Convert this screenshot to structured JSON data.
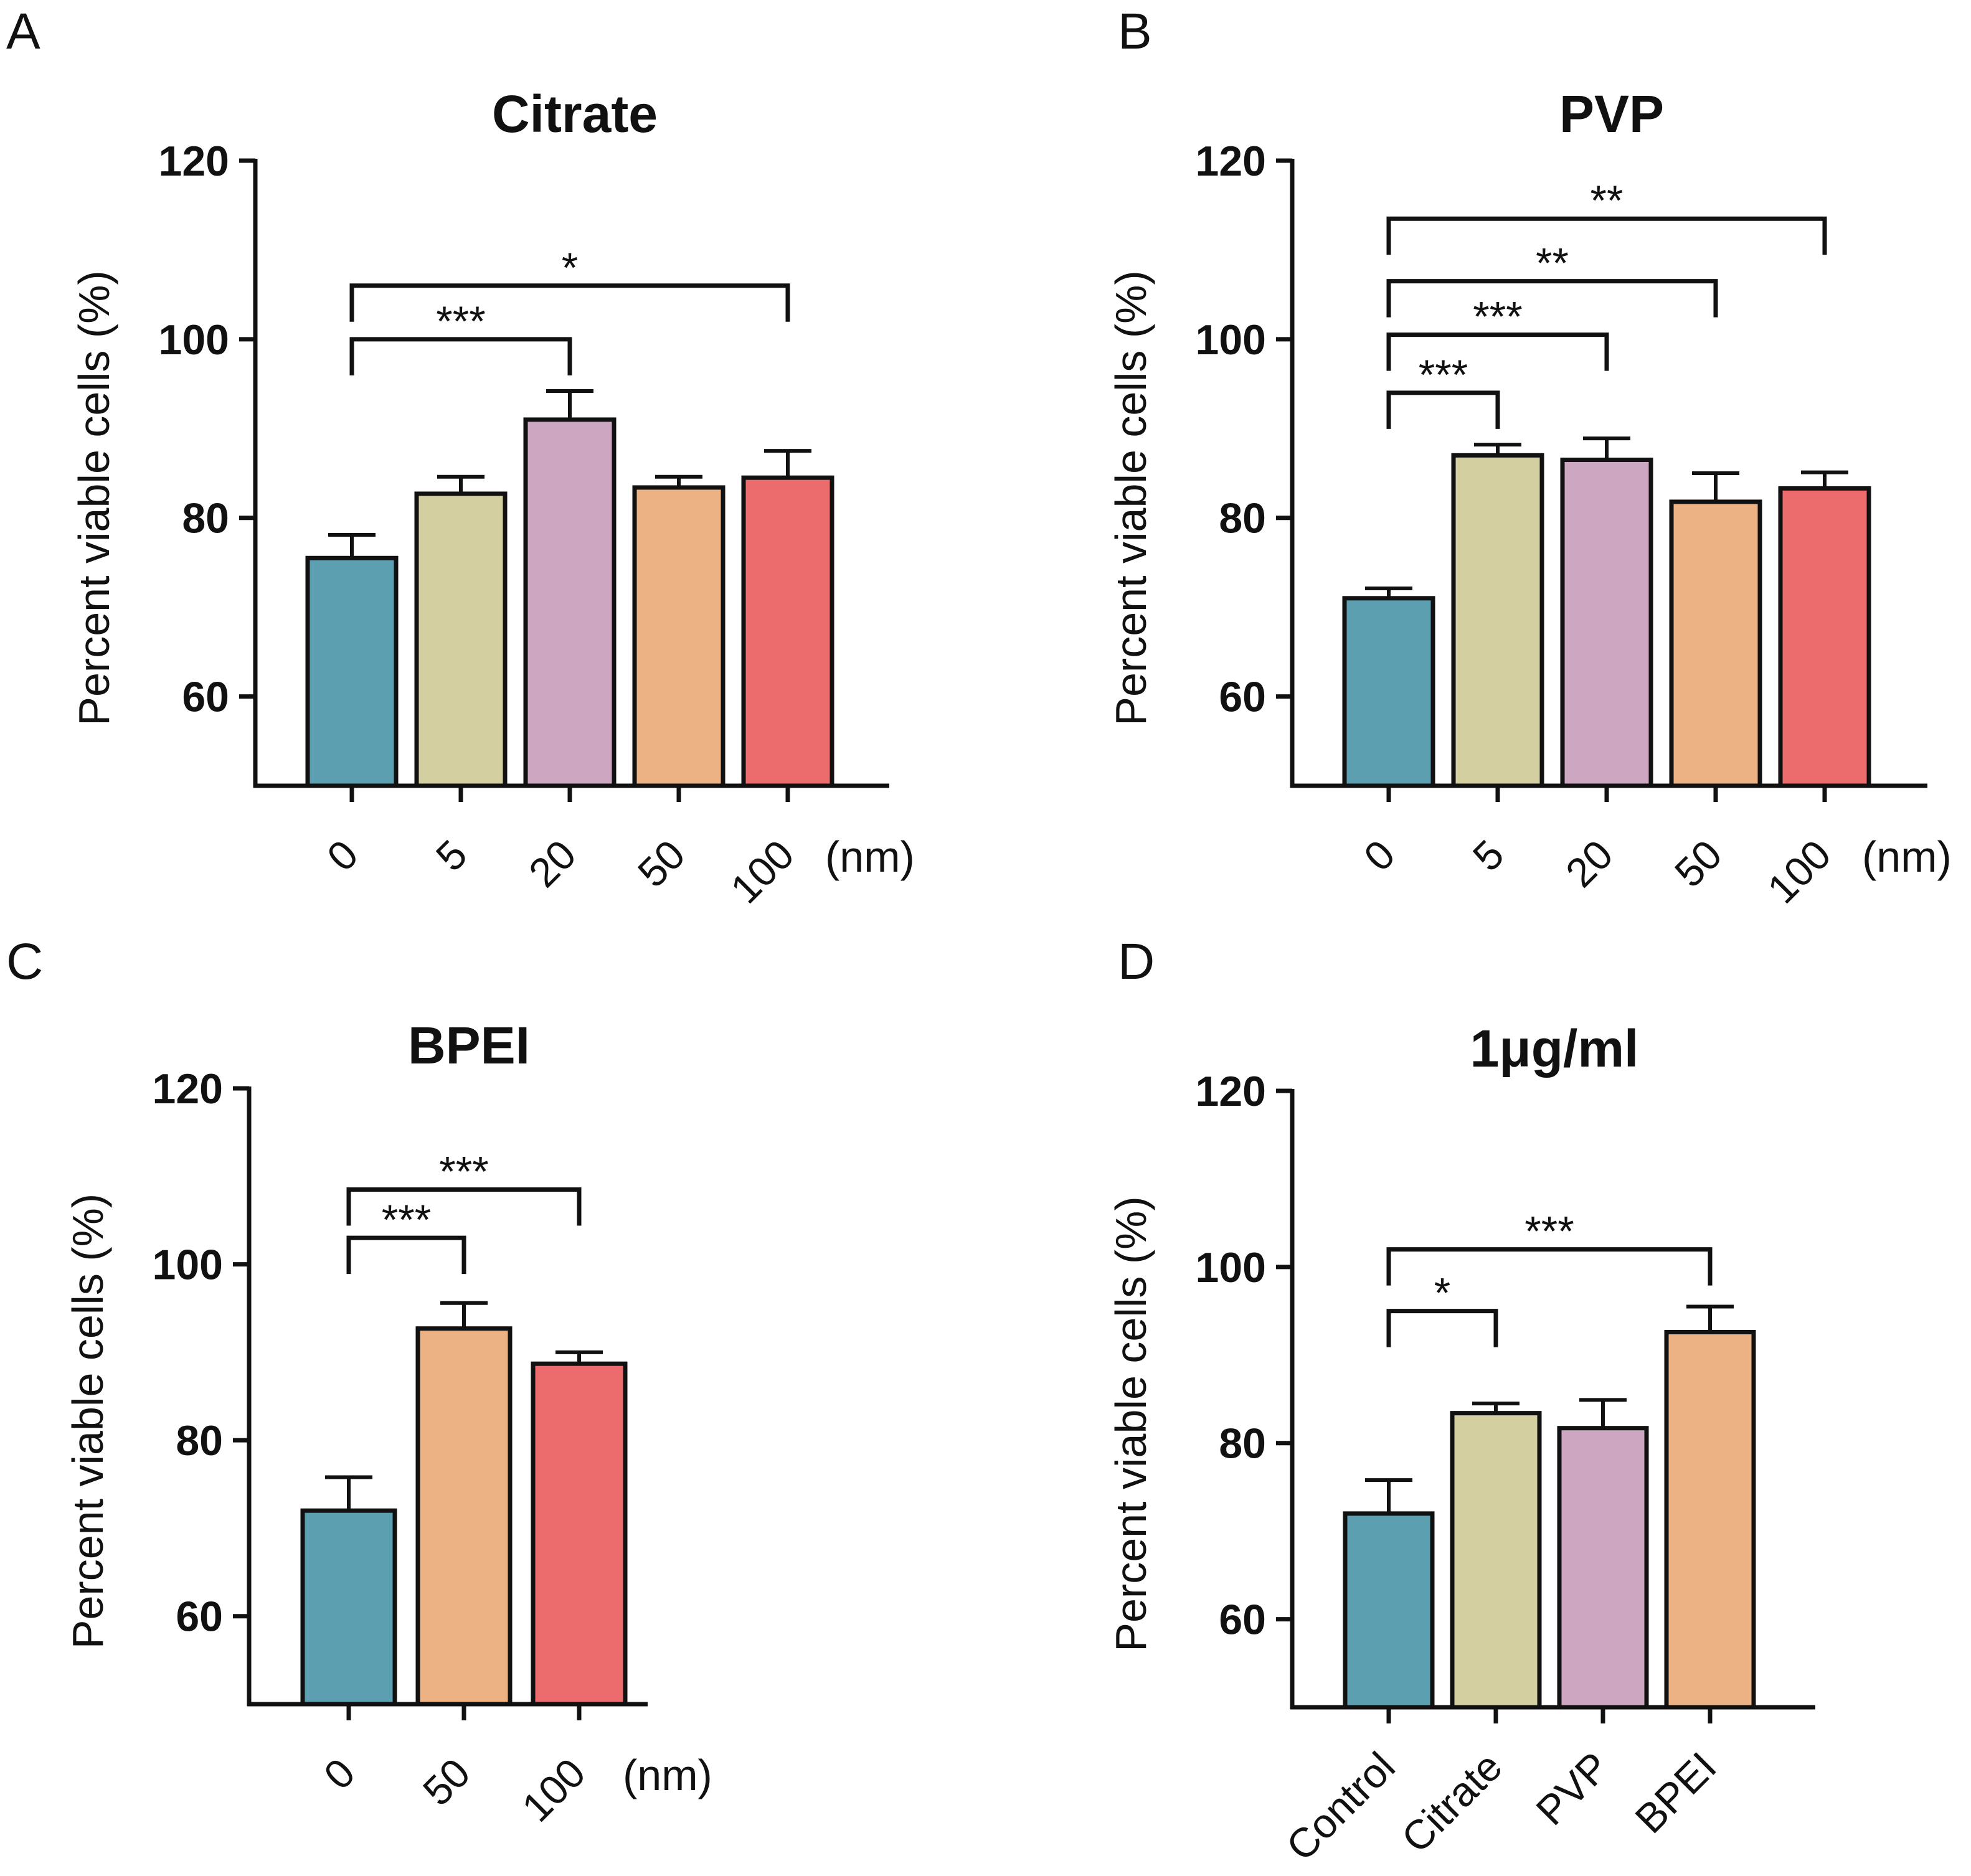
{
  "figure": {
    "ylabel": "Percent viable cells (%)",
    "unit_label": "(nm)"
  },
  "chart_data": [
    {
      "panel": "A",
      "type": "bar",
      "title": "Citrate",
      "xlabel": "",
      "ylabel": "Percent viable cells (%)",
      "unit_label": "(nm)",
      "ylim": [
        50,
        120
      ],
      "yticks": [
        60,
        80,
        100,
        120
      ],
      "categories": [
        "0",
        "5",
        "20",
        "50",
        "100"
      ],
      "values": [
        75.5,
        82.7,
        91.0,
        83.4,
        84.5
      ],
      "errors": [
        2.6,
        1.9,
        3.2,
        1.2,
        3.0
      ],
      "colors": [
        "#5c9fb0",
        "#d3cfa0",
        "#cda6c1",
        "#ecb283",
        "#ec6b6c"
      ],
      "significance": [
        {
          "from": 0,
          "to": 2,
          "label": "***",
          "y": 100
        },
        {
          "from": 0,
          "to": 4,
          "label": "*",
          "y": 106
        }
      ]
    },
    {
      "panel": "B",
      "type": "bar",
      "title": "PVP",
      "xlabel": "",
      "ylabel": "Percent viable cells (%)",
      "unit_label": "(nm)",
      "ylim": [
        50,
        120
      ],
      "yticks": [
        60,
        80,
        100,
        120
      ],
      "categories": [
        "0",
        "5",
        "20",
        "50",
        "100"
      ],
      "values": [
        71.0,
        87.0,
        86.5,
        81.8,
        83.3
      ],
      "errors": [
        1.1,
        1.2,
        2.4,
        3.2,
        1.8
      ],
      "colors": [
        "#5c9fb0",
        "#d3cfa0",
        "#cda6c1",
        "#ecb283",
        "#ec6b6c"
      ],
      "significance": [
        {
          "from": 0,
          "to": 1,
          "label": "***",
          "y": 94
        },
        {
          "from": 0,
          "to": 2,
          "label": "***",
          "y": 100.5
        },
        {
          "from": 0,
          "to": 3,
          "label": "**",
          "y": 106.5
        },
        {
          "from": 0,
          "to": 4,
          "label": "**",
          "y": 113.5
        }
      ]
    },
    {
      "panel": "C",
      "type": "bar",
      "title": "BPEI",
      "xlabel": "",
      "ylabel": "Percent viable cells (%)",
      "unit_label": "(nm)",
      "ylim": [
        50,
        120
      ],
      "yticks": [
        60,
        80,
        100,
        120
      ],
      "categories": [
        "0",
        "50",
        "100"
      ],
      "values": [
        72.0,
        92.7,
        88.7
      ],
      "errors": [
        3.8,
        2.9,
        1.3
      ],
      "colors": [
        "#5c9fb0",
        "#ecb283",
        "#ec6b6c"
      ],
      "significance": [
        {
          "from": 0,
          "to": 1,
          "label": "***",
          "y": 103
        },
        {
          "from": 0,
          "to": 2,
          "label": "***",
          "y": 108.5
        }
      ]
    },
    {
      "panel": "D",
      "type": "bar",
      "title": "1μg/ml",
      "xlabel": "",
      "ylabel": "Percent viable cells (%)",
      "unit_label": "",
      "ylim": [
        50,
        120
      ],
      "yticks": [
        60,
        80,
        100,
        120
      ],
      "categories": [
        "Control",
        "Citrate",
        "PVP",
        "BPEI"
      ],
      "values": [
        72.0,
        83.4,
        81.7,
        92.6
      ],
      "errors": [
        3.8,
        1.1,
        3.2,
        2.9
      ],
      "colors": [
        "#5c9fb0",
        "#d3cfa0",
        "#cda6c1",
        "#ecb283"
      ],
      "significance": [
        {
          "from": 0,
          "to": 1,
          "label": "*",
          "y": 95
        },
        {
          "from": 0,
          "to": 3,
          "label": "***",
          "y": 102
        }
      ]
    }
  ]
}
